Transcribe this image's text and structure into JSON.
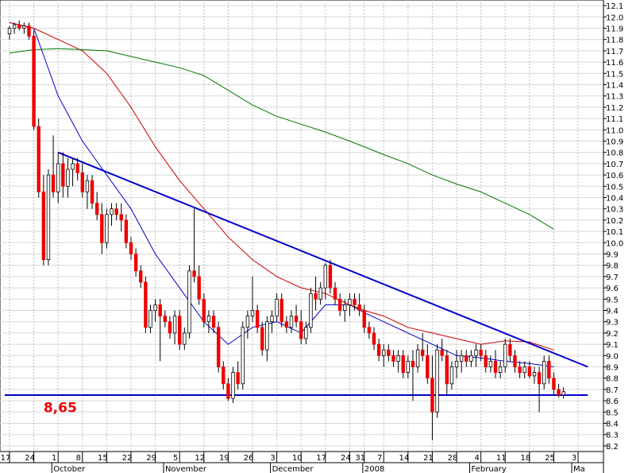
{
  "chart_data": {
    "type": "candlestick",
    "ylim": [
      8.15,
      12.15
    ],
    "y_ticks": [
      8.2,
      8.3,
      8.4,
      8.5,
      8.6,
      8.7,
      8.8,
      8.9,
      9.0,
      9.1,
      9.2,
      9.3,
      9.4,
      9.5,
      9.6,
      9.7,
      9.8,
      9.9,
      10.0,
      10.1,
      10.2,
      10.3,
      10.4,
      10.5,
      10.6,
      10.7,
      10.8,
      10.9,
      11.0,
      11.1,
      11.2,
      11.3,
      11.4,
      11.5,
      11.6,
      11.7,
      11.8,
      11.9,
      12.0,
      12.1
    ],
    "y_tick_labels": [
      "8.2",
      "8.3",
      "8.4",
      "8.5",
      "8.6",
      "8.7",
      "8.8",
      "8.9",
      "9.0",
      "9.1",
      "9.2",
      "9.3",
      "9.4",
      "9.5",
      "9.6",
      "9.7",
      "9.8",
      "9.9",
      "10.0",
      "10.1",
      "10.2",
      "10.3",
      "10.4",
      "10.5",
      "10.6",
      "10.7",
      "10.8",
      "10.9",
      "11.0",
      "11.1",
      "11.2",
      "11.3",
      "11.4",
      "11.5",
      "11.6",
      "11.7",
      "11.8",
      "11.9",
      "12.0",
      "12.1"
    ],
    "x_ticks": [
      {
        "i": 0,
        "label": "17"
      },
      {
        "i": 5,
        "label": "24"
      },
      {
        "i": 10,
        "label": "1"
      },
      {
        "i": 15,
        "label": "8"
      },
      {
        "i": 20,
        "label": "15"
      },
      {
        "i": 25,
        "label": "22"
      },
      {
        "i": 30,
        "label": "29"
      },
      {
        "i": 35,
        "label": "5"
      },
      {
        "i": 40,
        "label": "12"
      },
      {
        "i": 45,
        "label": "19"
      },
      {
        "i": 50,
        "label": "26"
      },
      {
        "i": 55,
        "label": "3"
      },
      {
        "i": 60,
        "label": "10"
      },
      {
        "i": 65,
        "label": "17"
      },
      {
        "i": 70,
        "label": "24"
      },
      {
        "i": 73,
        "label": "31"
      },
      {
        "i": 77,
        "label": "7"
      },
      {
        "i": 82,
        "label": "14"
      },
      {
        "i": 87,
        "label": "21"
      },
      {
        "i": 92,
        "label": "28"
      },
      {
        "i": 97,
        "label": "4"
      },
      {
        "i": 102,
        "label": "11"
      },
      {
        "i": 107,
        "label": "18"
      },
      {
        "i": 112,
        "label": "25"
      },
      {
        "i": 117,
        "label": "3"
      }
    ],
    "months": [
      {
        "i": 10,
        "label": "October"
      },
      {
        "i": 33,
        "label": "November"
      },
      {
        "i": 55,
        "label": "December"
      },
      {
        "i": 74,
        "label": "2008"
      },
      {
        "i": 96,
        "label": "February"
      },
      {
        "i": 117,
        "label": "Ma"
      }
    ],
    "candles": [
      [
        11.85,
        11.92,
        11.8,
        11.9
      ],
      [
        11.9,
        11.95,
        11.85,
        11.93
      ],
      [
        11.93,
        11.97,
        11.88,
        11.9
      ],
      [
        11.9,
        11.95,
        11.85,
        11.92
      ],
      [
        11.92,
        11.95,
        11.8,
        11.83
      ],
      [
        11.83,
        11.88,
        11.0,
        11.03
      ],
      [
        11.03,
        11.1,
        10.4,
        10.45
      ],
      [
        10.45,
        10.6,
        9.8,
        9.85
      ],
      [
        9.85,
        10.65,
        9.8,
        10.6
      ],
      [
        10.6,
        10.95,
        10.4,
        10.45
      ],
      [
        10.45,
        10.8,
        10.35,
        10.7
      ],
      [
        10.7,
        10.8,
        10.4,
        10.5
      ],
      [
        10.5,
        10.75,
        10.4,
        10.65
      ],
      [
        10.65,
        10.75,
        10.5,
        10.7
      ],
      [
        10.7,
        10.75,
        10.55,
        10.62
      ],
      [
        10.62,
        10.7,
        10.4,
        10.45
      ],
      [
        10.45,
        10.6,
        10.3,
        10.55
      ],
      [
        10.55,
        10.6,
        10.3,
        10.35
      ],
      [
        10.35,
        10.45,
        10.2,
        10.25
      ],
      [
        10.25,
        10.35,
        9.9,
        10.0
      ],
      [
        10.0,
        10.3,
        9.95,
        10.25
      ],
      [
        10.25,
        10.35,
        10.15,
        10.3
      ],
      [
        10.3,
        10.35,
        10.2,
        10.25
      ],
      [
        10.25,
        10.35,
        10.1,
        10.2
      ],
      [
        10.2,
        10.25,
        9.95,
        10.0
      ],
      [
        10.0,
        10.05,
        9.85,
        9.9
      ],
      [
        9.9,
        9.95,
        9.7,
        9.75
      ],
      [
        9.75,
        9.8,
        9.6,
        9.65
      ],
      [
        9.65,
        9.7,
        9.2,
        9.25
      ],
      [
        9.25,
        9.45,
        9.2,
        9.4
      ],
      [
        9.4,
        9.5,
        9.3,
        9.45
      ],
      [
        9.45,
        9.5,
        8.95,
        9.35
      ],
      [
        9.35,
        9.4,
        9.25,
        9.3
      ],
      [
        9.3,
        9.35,
        9.15,
        9.2
      ],
      [
        9.2,
        9.4,
        9.1,
        9.35
      ],
      [
        9.35,
        9.4,
        9.05,
        9.1
      ],
      [
        9.1,
        9.25,
        9.05,
        9.2
      ],
      [
        9.2,
        9.8,
        9.15,
        9.75
      ],
      [
        9.75,
        10.3,
        9.65,
        9.7
      ],
      [
        9.7,
        9.8,
        9.45,
        9.5
      ],
      [
        9.5,
        9.55,
        9.25,
        9.3
      ],
      [
        9.3,
        9.4,
        9.2,
        9.35
      ],
      [
        9.35,
        9.4,
        9.2,
        9.25
      ],
      [
        9.25,
        9.3,
        8.85,
        8.9
      ],
      [
        8.9,
        8.95,
        8.7,
        8.75
      ],
      [
        8.75,
        8.8,
        8.6,
        8.62
      ],
      [
        8.62,
        8.9,
        8.58,
        8.85
      ],
      [
        8.85,
        8.95,
        8.7,
        8.75
      ],
      [
        8.75,
        9.3,
        8.7,
        9.25
      ],
      [
        9.25,
        9.4,
        9.15,
        9.35
      ],
      [
        9.35,
        9.7,
        9.3,
        9.4
      ],
      [
        9.4,
        9.45,
        9.2,
        9.25
      ],
      [
        9.25,
        9.3,
        9.0,
        9.05
      ],
      [
        9.05,
        9.35,
        8.95,
        9.3
      ],
      [
        9.3,
        9.4,
        9.2,
        9.35
      ],
      [
        9.35,
        9.55,
        9.3,
        9.5
      ],
      [
        9.5,
        9.55,
        9.25,
        9.3
      ],
      [
        9.3,
        9.35,
        9.2,
        9.25
      ],
      [
        9.25,
        9.4,
        9.2,
        9.35
      ],
      [
        9.35,
        9.45,
        9.25,
        9.3
      ],
      [
        9.3,
        9.4,
        9.1,
        9.15
      ],
      [
        9.15,
        9.3,
        9.1,
        9.25
      ],
      [
        9.25,
        9.6,
        9.2,
        9.55
      ],
      [
        9.55,
        9.7,
        9.4,
        9.5
      ],
      [
        9.5,
        9.65,
        9.45,
        9.6
      ],
      [
        9.6,
        9.82,
        9.5,
        9.8
      ],
      [
        9.8,
        9.85,
        9.55,
        9.6
      ],
      [
        9.6,
        9.65,
        9.45,
        9.5
      ],
      [
        9.5,
        9.55,
        9.35,
        9.4
      ],
      [
        9.4,
        9.5,
        9.3,
        9.45
      ],
      [
        9.45,
        9.55,
        9.35,
        9.5
      ],
      [
        9.5,
        9.55,
        9.4,
        9.45
      ],
      [
        9.45,
        9.55,
        9.35,
        9.4
      ],
      [
        9.4,
        9.45,
        9.2,
        9.25
      ],
      [
        9.25,
        9.3,
        9.15,
        9.2
      ],
      [
        9.2,
        9.25,
        9.05,
        9.1
      ],
      [
        9.1,
        9.15,
        8.95,
        9.0
      ],
      [
        9.0,
        9.1,
        8.9,
        9.05
      ],
      [
        9.05,
        9.1,
        8.95,
        9.0
      ],
      [
        9.0,
        9.05,
        8.9,
        8.95
      ],
      [
        8.95,
        9.05,
        8.85,
        9.0
      ],
      [
        9.0,
        9.05,
        8.8,
        8.85
      ],
      [
        8.85,
        9.0,
        8.8,
        8.95
      ],
      [
        8.95,
        9.05,
        8.6,
        8.9
      ],
      [
        8.9,
        9.1,
        8.85,
        9.05
      ],
      [
        9.05,
        9.2,
        8.95,
        9.0
      ],
      [
        9.0,
        9.1,
        8.75,
        8.8
      ],
      [
        8.8,
        9.0,
        8.25,
        8.5
      ],
      [
        8.5,
        9.1,
        8.45,
        9.05
      ],
      [
        9.05,
        9.15,
        8.95,
        9.0
      ],
      [
        9.0,
        9.05,
        8.65,
        8.75
      ],
      [
        8.75,
        8.95,
        8.7,
        8.9
      ],
      [
        8.9,
        9.05,
        8.8,
        8.95
      ],
      [
        8.95,
        9.05,
        8.85,
        9.0
      ],
      [
        9.0,
        9.05,
        8.9,
        8.95
      ],
      [
        8.95,
        9.05,
        8.9,
        9.0
      ],
      [
        9.0,
        9.1,
        8.9,
        9.05
      ],
      [
        9.05,
        9.1,
        8.95,
        9.0
      ],
      [
        9.0,
        9.05,
        8.85,
        8.9
      ],
      [
        8.9,
        9.0,
        8.85,
        8.95
      ],
      [
        8.95,
        9.05,
        8.8,
        8.85
      ],
      [
        8.85,
        8.95,
        8.8,
        8.9
      ],
      [
        8.9,
        9.15,
        8.85,
        9.1
      ],
      [
        9.1,
        9.15,
        8.95,
        9.0
      ],
      [
        9.0,
        9.05,
        8.85,
        8.9
      ],
      [
        8.9,
        8.95,
        8.8,
        8.85
      ],
      [
        8.85,
        8.95,
        8.8,
        8.9
      ],
      [
        8.9,
        8.95,
        8.8,
        8.82
      ],
      [
        8.82,
        8.9,
        8.75,
        8.85
      ],
      [
        8.85,
        8.9,
        8.5,
        8.75
      ],
      [
        8.75,
        9.0,
        8.7,
        8.95
      ],
      [
        8.95,
        9.0,
        8.75,
        8.8
      ],
      [
        8.8,
        8.85,
        8.65,
        8.7
      ],
      [
        8.7,
        8.75,
        8.63,
        8.65
      ],
      [
        8.65,
        8.72,
        8.62,
        8.68
      ]
    ],
    "moving_averages": [
      {
        "color": "#0000cc",
        "points": [
          [
            0,
            11.95
          ],
          [
            5,
            11.9
          ],
          [
            10,
            11.3
          ],
          [
            15,
            10.9
          ],
          [
            20,
            10.6
          ],
          [
            25,
            10.3
          ],
          [
            30,
            9.9
          ],
          [
            35,
            9.6
          ],
          [
            40,
            9.3
          ],
          [
            45,
            9.1
          ],
          [
            50,
            9.25
          ],
          [
            55,
            9.3
          ],
          [
            60,
            9.2
          ],
          [
            65,
            9.45
          ],
          [
            70,
            9.45
          ],
          [
            73,
            9.38
          ],
          [
            77,
            9.3
          ],
          [
            82,
            9.2
          ],
          [
            87,
            9.1
          ],
          [
            92,
            9.0
          ],
          [
            97,
            8.98
          ],
          [
            102,
            8.95
          ],
          [
            107,
            8.93
          ],
          [
            112,
            8.9
          ]
        ]
      },
      {
        "color": "#cc0000",
        "points": [
          [
            0,
            11.95
          ],
          [
            5,
            11.9
          ],
          [
            10,
            11.8
          ],
          [
            15,
            11.7
          ],
          [
            20,
            11.5
          ],
          [
            25,
            11.2
          ],
          [
            30,
            10.85
          ],
          [
            35,
            10.55
          ],
          [
            40,
            10.3
          ],
          [
            45,
            10.05
          ],
          [
            50,
            9.85
          ],
          [
            55,
            9.7
          ],
          [
            60,
            9.6
          ],
          [
            65,
            9.55
          ],
          [
            70,
            9.45
          ],
          [
            73,
            9.4
          ],
          [
            77,
            9.35
          ],
          [
            82,
            9.25
          ],
          [
            87,
            9.2
          ],
          [
            92,
            9.15
          ],
          [
            97,
            9.1
          ],
          [
            102,
            9.13
          ],
          [
            107,
            9.12
          ],
          [
            112,
            9.05
          ]
        ]
      },
      {
        "color": "#007700",
        "points": [
          [
            0,
            11.68
          ],
          [
            5,
            11.71
          ],
          [
            10,
            11.72
          ],
          [
            15,
            11.71
          ],
          [
            20,
            11.7
          ],
          [
            25,
            11.65
          ],
          [
            30,
            11.6
          ],
          [
            35,
            11.55
          ],
          [
            40,
            11.48
          ],
          [
            45,
            11.35
          ],
          [
            50,
            11.22
          ],
          [
            55,
            11.12
          ],
          [
            60,
            11.05
          ],
          [
            65,
            10.98
          ],
          [
            70,
            10.9
          ],
          [
            73,
            10.85
          ],
          [
            77,
            10.78
          ],
          [
            82,
            10.7
          ],
          [
            87,
            10.6
          ],
          [
            92,
            10.52
          ],
          [
            97,
            10.45
          ],
          [
            102,
            10.35
          ],
          [
            107,
            10.25
          ],
          [
            112,
            10.12
          ]
        ]
      }
    ],
    "trendlines": [
      {
        "color": "#0000cc",
        "from": [
          10,
          10.8
        ],
        "to": [
          119,
          8.9
        ]
      },
      {
        "color": "#0000cc",
        "from": [
          -1,
          8.65
        ],
        "to": [
          119,
          8.65
        ]
      }
    ],
    "annotation": {
      "text": "8,65",
      "color": "#ee0000",
      "at": [
        7,
        8.5
      ]
    }
  }
}
